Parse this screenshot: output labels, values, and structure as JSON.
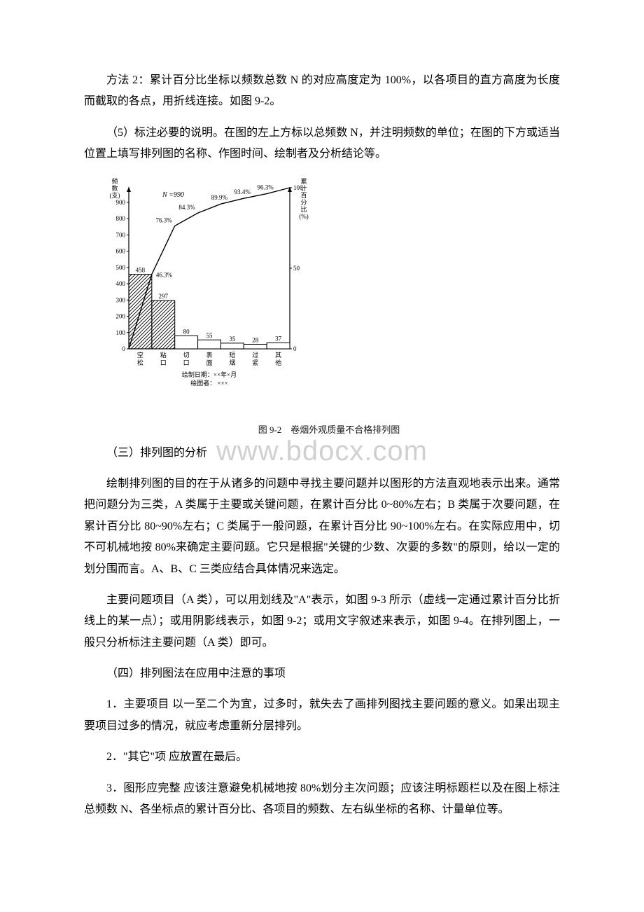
{
  "p1": "方法 2：累计百分比坐标以频数总数 N 的对应高度定为 100%，以各项目的直方高度为长度而截取的各点，用折线连接。如图 9-2。",
  "p2": "（5）标注必要的说明。在图的左上方标以总频数 N，并注明频数的单位；在图的下方或适当位置上填写排列图的名称、作图时间、绘制者及分析结论等。",
  "p3": "（三）排列图的分析",
  "p4": "绘制排列图的目的在于从诸多的问题中寻找主要问题并以图形的方法直观地表示出来。通常把问题分为三类，A 类属于主要或关键问题，在累计百分比 0~80%左右；B 类属于次要问题，在累计百分比 80~90%左右；C 类属于一般问题，在累计百分比 90~100%左右。在实际应用中，切不可机械地按 80%来确定主要问题。它只是根据\"关键的少数、次要的多数\"的原则，给以一定的划分围而言。A、B、C 三类应结合具体情况来选定。",
  "p5": "主要问题项目（A 类），可以用划线及\"A\"表示，如图 9-3 所示（虚线一定通过累计百分比折线上的某一点）；或用阴影线表示，如图 9-2；或用文字叙述来表示，如图 9-4。在排列图上，一般只分析标注主要问题（A 类）即可。",
  "p6": "（四）排列图法在应用中注意的事项",
  "p7": "1．主要项目 以一至二个为宜，过多时，就失去了画排列图找主要问题的意义。如果出现主要项目过多的情况，就应考虑重新分层排列。",
  "p8": "2．\"其它\"项 应放置在最后。",
  "p9": "3．图形应完整 应该注意避免机械地按 80%划分主次问题；应该注明标题栏以及在图上标注总频数 N、各坐标点的累计百分比、各项目的频数、左右纵坐标的名称、计量单位等。",
  "watermark": "www.bdocx.com",
  "watermark_color": "#d0d0d0",
  "chart": {
    "caption": "图 9-2　卷烟外观质量不合格排列图",
    "y_left_title_lines": [
      "频",
      "数",
      "(支)"
    ],
    "y_right_title_lines": [
      "累",
      "计",
      "百",
      "分",
      "比",
      "(%)"
    ],
    "y_left_ticks": [
      0,
      100,
      200,
      300,
      400,
      500,
      600,
      700,
      800,
      900
    ],
    "y_left_max": 990,
    "y_right_ticks": [
      0,
      50,
      100
    ],
    "N_label": "N =990",
    "categories": [
      "空\n松",
      "粘\n口",
      "切\n口",
      "表\n面",
      "短\n烟",
      "过\n紧",
      "其\n他"
    ],
    "values": [
      458,
      297,
      80,
      55,
      35,
      28,
      37
    ],
    "cumulative_pct": [
      46.3,
      76.3,
      84.3,
      89.9,
      93.4,
      96.3,
      100
    ],
    "pct_display_labels": [
      "46.3%",
      "76.3%",
      "84.3%",
      "89.9%",
      "93.4%",
      "96.3%",
      ""
    ],
    "hatched_bars": [
      0,
      1
    ],
    "footer_line1": "绘制日期：××年×月",
    "footer_line2": "绘图者： ×××",
    "bar_width_ratio": 1.0,
    "line_color": "#000000",
    "axis_color": "#000000",
    "bar_stroke": "#000000",
    "bar_fill": "#ffffff",
    "background": "#ffffff"
  }
}
